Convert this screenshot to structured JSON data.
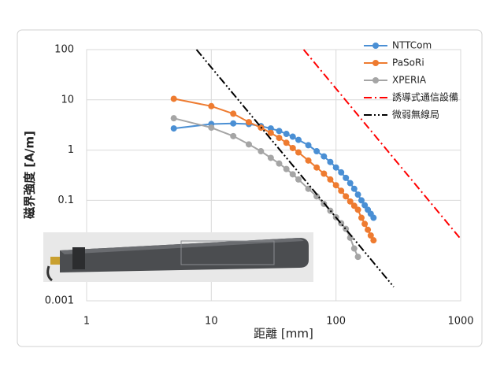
{
  "chart_data": {
    "type": "line",
    "xlabel": "距離 [mm]",
    "ylabel": "磁界強度 [A/m]",
    "xscale": "log",
    "yscale": "log",
    "grid": true,
    "legend": "upper right",
    "xlim": [
      1,
      1000
    ],
    "ylim": [
      0.001,
      100
    ],
    "xticks": [
      1,
      10,
      100,
      1000
    ],
    "yticks": [
      0.001,
      0.1,
      1,
      10,
      100
    ],
    "series": [
      {
        "name": "NTTCom",
        "color": "#4a8fd4",
        "marker": true,
        "linestyle": "solid",
        "x": [
          5,
          10,
          15,
          20,
          25,
          30,
          35,
          40,
          45,
          50,
          60,
          70,
          80,
          90,
          100,
          110,
          120,
          130,
          140,
          150,
          160,
          170,
          180,
          190,
          200
        ],
        "values": [
          2.7,
          3.3,
          3.4,
          3.3,
          3.0,
          2.7,
          2.4,
          2.1,
          1.85,
          1.6,
          1.25,
          0.95,
          0.75,
          0.58,
          0.45,
          0.36,
          0.28,
          0.22,
          0.17,
          0.13,
          0.1,
          0.08,
          0.065,
          0.054,
          0.045
        ]
      },
      {
        "name": "PaSoRi",
        "color": "#ee7b30",
        "marker": true,
        "linestyle": "solid",
        "x": [
          5,
          10,
          15,
          20,
          25,
          30,
          35,
          40,
          45,
          50,
          60,
          70,
          80,
          90,
          100,
          110,
          120,
          130,
          140,
          150,
          160,
          170,
          180,
          190,
          200
        ],
        "values": [
          10.5,
          7.5,
          5.3,
          3.6,
          2.8,
          2.2,
          1.75,
          1.4,
          1.1,
          0.9,
          0.62,
          0.45,
          0.34,
          0.26,
          0.2,
          0.155,
          0.12,
          0.095,
          0.078,
          0.065,
          0.045,
          0.034,
          0.026,
          0.02,
          0.016
        ]
      },
      {
        "name": "XPERIA",
        "color": "#a5a5a5",
        "marker": true,
        "linestyle": "solid",
        "x": [
          5,
          10,
          15,
          20,
          25,
          30,
          35,
          40,
          45,
          50,
          60,
          70,
          80,
          90,
          100,
          110,
          120,
          130,
          140,
          150
        ],
        "values": [
          4.3,
          2.8,
          1.9,
          1.3,
          0.95,
          0.7,
          0.54,
          0.42,
          0.33,
          0.26,
          0.17,
          0.12,
          0.085,
          0.062,
          0.046,
          0.035,
          0.027,
          0.018,
          0.011,
          0.0075
        ]
      },
      {
        "name": "誘導式通信設備",
        "color": "#ff0000",
        "marker": false,
        "linestyle": "dashdot",
        "x": [
          55,
          1000
        ],
        "values": [
          100,
          0.017
        ]
      },
      {
        "name": "微弱無線局",
        "color": "#000000",
        "marker": false,
        "linestyle": "dashdotdot",
        "x": [
          7.6,
          290
        ],
        "values": [
          100,
          0.0019
        ]
      }
    ]
  }
}
